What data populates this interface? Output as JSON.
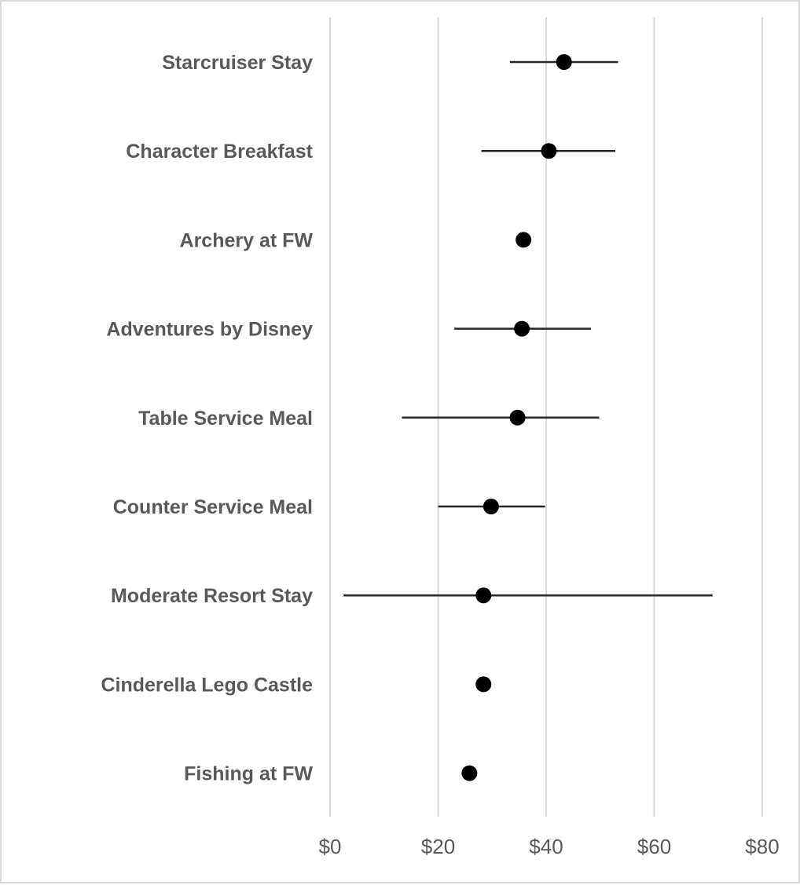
{
  "chart_data": {
    "type": "scatter",
    "orientation": "horizontal",
    "title": "",
    "xlabel": "",
    "ylabel": "",
    "xlim": [
      0,
      80
    ],
    "x_ticks": [
      0,
      20,
      40,
      60,
      80
    ],
    "x_tick_labels": [
      "$0",
      "$20",
      "$40",
      "$60",
      "$80"
    ],
    "grid": "vertical",
    "legend": "none",
    "colors": {
      "point": "#000000",
      "errbar": "#262626",
      "grid": "#d9d9d9",
      "text": "#595959"
    },
    "categories": [
      "Starcruiser Stay",
      "Character Breakfast",
      "Archery at FW",
      "Adventures by Disney",
      "Table Service Meal",
      "Counter Service Meal",
      "Moderate Resort Stay",
      "Cinderella Lego Castle",
      "Fishing at FW"
    ],
    "values": [
      43.3,
      40.5,
      35.8,
      35.5,
      34.7,
      29.8,
      28.4,
      28.4,
      25.8
    ],
    "error_low": [
      33.3,
      28.0,
      null,
      23.0,
      13.3,
      20.0,
      2.5,
      null,
      null
    ],
    "error_high": [
      53.3,
      52.8,
      null,
      48.3,
      49.8,
      39.8,
      70.8,
      null,
      null
    ]
  }
}
